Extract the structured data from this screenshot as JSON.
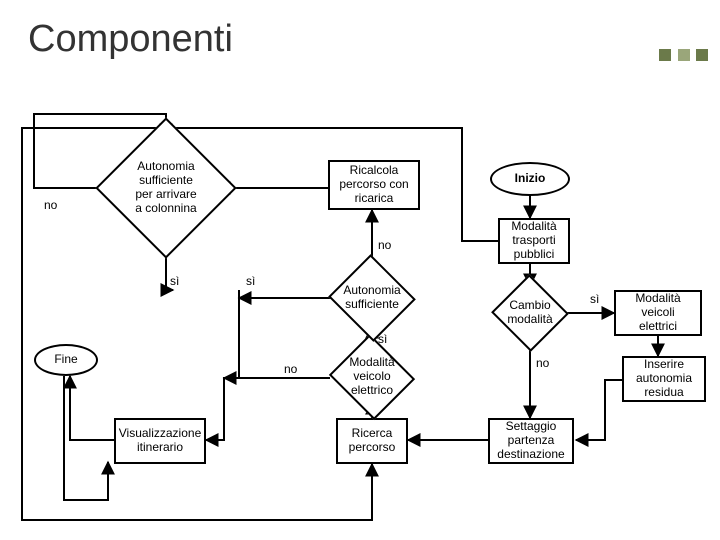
{
  "title": "Componenti",
  "decor_colors": [
    "#6b7a4a",
    "#9aa67a",
    "#6b7a4a"
  ],
  "nodes": {
    "inizio": {
      "label": "Inizio"
    },
    "mod_pub": {
      "label": "Modalità\ntrasporti\npubblici"
    },
    "cambio": {
      "label": "Cambio\nmodalità"
    },
    "mod_elet": {
      "label": "Modalità\nveicoli\nelettrici"
    },
    "ins_aut": {
      "label": "Inserire\nautonomia\nresidua"
    },
    "settaggio": {
      "label": "Settaggio\npartenza\ndestinazione"
    },
    "ricerca": {
      "label": "Ricerca\npercorso"
    },
    "mod_veic": {
      "label": "Modalità\nveicolo\nelettrico"
    },
    "aut_suff": {
      "label": "Autonomia\nsufficiente"
    },
    "ricalcola": {
      "label": "Ricalcola\npercorso con\nricarica"
    },
    "aut_col": {
      "label": "Autonomia\nsufficiente\nper arrivare\na colonnina"
    },
    "visual": {
      "label": "Visualizzazione\nitinerario"
    },
    "fine": {
      "label": "Fine"
    }
  },
  "edge_labels": {
    "no_left": "no",
    "no_top": "no",
    "si_aut": "sì",
    "si_sub": "sì",
    "si_mod": "sì",
    "no_cambio": "no",
    "si_cambio": "sì",
    "no_veic": "no"
  },
  "stroke": "#000000",
  "stroke_width": 2
}
